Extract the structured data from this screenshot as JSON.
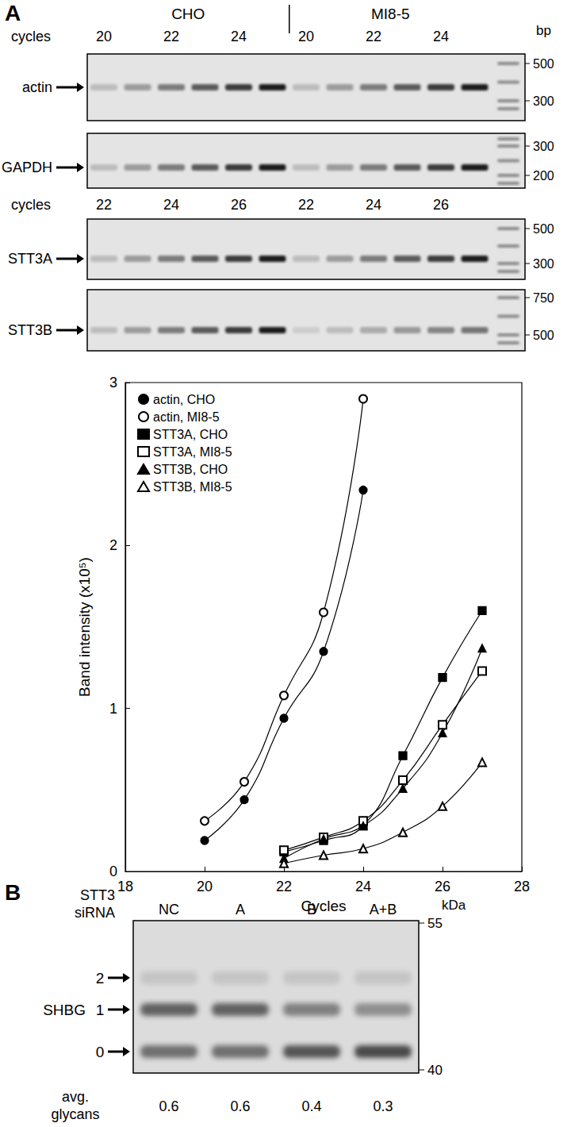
{
  "panel_labels": [
    "A",
    "B"
  ],
  "gels_A": {
    "groups": [
      "CHO",
      "MI8-5"
    ],
    "cycles_label": "cycles",
    "size_unit": "bp",
    "cycle_rows": [
      {
        "cycles": [
          20,
          22,
          24
        ],
        "rows": [
          {
            "label": "actin",
            "size_markers": [
              500,
              300
            ]
          },
          {
            "label": "GAPDH",
            "size_markers": [
              300,
              200
            ]
          }
        ]
      },
      {
        "cycles": [
          22,
          24,
          26
        ],
        "rows": [
          {
            "label": "STT3A",
            "size_markers": [
              500,
              300
            ]
          },
          {
            "label": "STT3B",
            "size_markers": [
              750,
              500
            ]
          }
        ]
      }
    ]
  },
  "chart_data": {
    "type": "line",
    "xlabel": "Cycles",
    "ylabel": "Band intensity (x10⁵)",
    "xlim": [
      18,
      28
    ],
    "xticks": [
      18,
      20,
      22,
      24,
      26,
      28
    ],
    "ylim": [
      0,
      3
    ],
    "yticks": [
      0,
      1,
      2,
      3
    ],
    "grid": false,
    "legend": "upper left",
    "series": [
      {
        "name": "actin, CHO",
        "color": "#000000",
        "marker": "circle",
        "x": [
          20,
          21,
          22,
          23,
          24
        ],
        "values": [
          0.19,
          0.44,
          0.94,
          1.35,
          2.34
        ]
      },
      {
        "name": "actin, MI8-5",
        "color": "#000000",
        "marker": "open_circle",
        "x": [
          20,
          21,
          22,
          23,
          24
        ],
        "values": [
          0.31,
          0.55,
          1.08,
          1.59,
          2.9
        ]
      },
      {
        "name": "STT3A, CHO",
        "color": "#000000",
        "marker": "square",
        "x": [
          22,
          23,
          24,
          25,
          26,
          27
        ],
        "values": [
          0.12,
          0.19,
          0.28,
          0.71,
          1.19,
          1.6
        ]
      },
      {
        "name": "STT3A, MI8-5",
        "color": "#000000",
        "marker": "open_square",
        "x": [
          22,
          23,
          24,
          25,
          26,
          27
        ],
        "values": [
          0.13,
          0.21,
          0.31,
          0.56,
          0.9,
          1.23
        ]
      },
      {
        "name": "STT3B, CHO",
        "color": "#000000",
        "marker": "triangle",
        "x": [
          22,
          23,
          24,
          25,
          26,
          27
        ],
        "values": [
          0.08,
          0.2,
          0.28,
          0.51,
          0.85,
          1.37
        ]
      },
      {
        "name": "STT3B, MI8-5",
        "color": "#000000",
        "marker": "open_triangle",
        "x": [
          22,
          23,
          24,
          25,
          26,
          27
        ],
        "values": [
          0.05,
          0.1,
          0.14,
          0.24,
          0.4,
          0.67
        ]
      }
    ]
  },
  "gel_B": {
    "lane_title": "STT3 siRNA",
    "lanes": [
      "NC",
      "A",
      "B",
      "A+B"
    ],
    "size_unit": "kDa",
    "size_markers": [
      55,
      40
    ],
    "protein": "SHBG",
    "bands": [
      2,
      1,
      0
    ],
    "avg_label": "avg. glycans",
    "avg_glycans": [
      0.6,
      0.6,
      0.4,
      0.3
    ]
  }
}
